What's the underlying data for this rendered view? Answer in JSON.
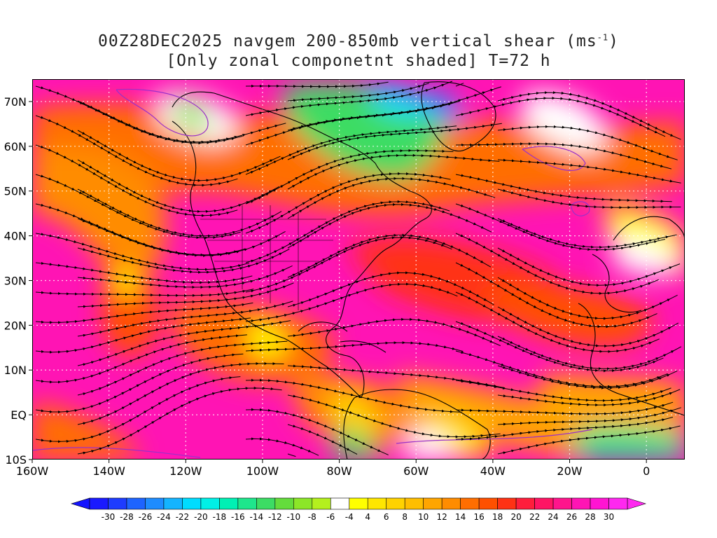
{
  "title": {
    "line1_prefix": "00Z28DEC2025 navgem 200-850mb vertical shear (ms",
    "line1_sup": "-1",
    "line1_suffix": ")",
    "line2": "[Only zonal componetnt shaded] T=72 h"
  },
  "map": {
    "lon_range": [
      -160,
      10
    ],
    "lat_range": [
      -10,
      75
    ],
    "lat_ticks": [
      {
        "value": 70,
        "label": "70N"
      },
      {
        "value": 60,
        "label": "60N"
      },
      {
        "value": 50,
        "label": "50N"
      },
      {
        "value": 40,
        "label": "40N"
      },
      {
        "value": 30,
        "label": "30N"
      },
      {
        "value": 20,
        "label": "20N"
      },
      {
        "value": 10,
        "label": "10N"
      },
      {
        "value": 0,
        "label": "EQ"
      },
      {
        "value": -10,
        "label": "10S"
      }
    ],
    "lon_ticks": [
      {
        "value": -160,
        "label": "160W"
      },
      {
        "value": -140,
        "label": "140W"
      },
      {
        "value": -120,
        "label": "120W"
      },
      {
        "value": -100,
        "label": "100W"
      },
      {
        "value": -80,
        "label": "80W"
      },
      {
        "value": -60,
        "label": "60W"
      },
      {
        "value": -40,
        "label": "40W"
      },
      {
        "value": -20,
        "label": "20W"
      },
      {
        "value": 0,
        "label": "0"
      }
    ]
  },
  "colorbar": {
    "labels": [
      "-30",
      "-28",
      "-26",
      "-24",
      "-22",
      "-20",
      "-18",
      "-16",
      "-14",
      "-12",
      "-10",
      "-8",
      "-6",
      "-4",
      "4",
      "6",
      "8",
      "10",
      "12",
      "14",
      "16",
      "18",
      "20",
      "22",
      "24",
      "26",
      "28",
      "30"
    ],
    "colors": [
      "#1a1aff",
      "#1e3cff",
      "#1e64ff",
      "#1e8cff",
      "#14b4ff",
      "#00dcff",
      "#00f0e6",
      "#00f0b4",
      "#1ee68c",
      "#3cdc64",
      "#64dc3c",
      "#8ce628",
      "#b4f01e",
      "#ffffff",
      "#ffff00",
      "#ffe600",
      "#ffd200",
      "#ffbe00",
      "#ffa500",
      "#ff8c00",
      "#ff6e00",
      "#ff5000",
      "#ff3214",
      "#ff1e3c",
      "#ff1464",
      "#ff148c",
      "#ff14b4",
      "#ff14d2",
      "#ff28f0"
    ],
    "under_color": "#1414ff",
    "over_color": "#ff28f0"
  }
}
